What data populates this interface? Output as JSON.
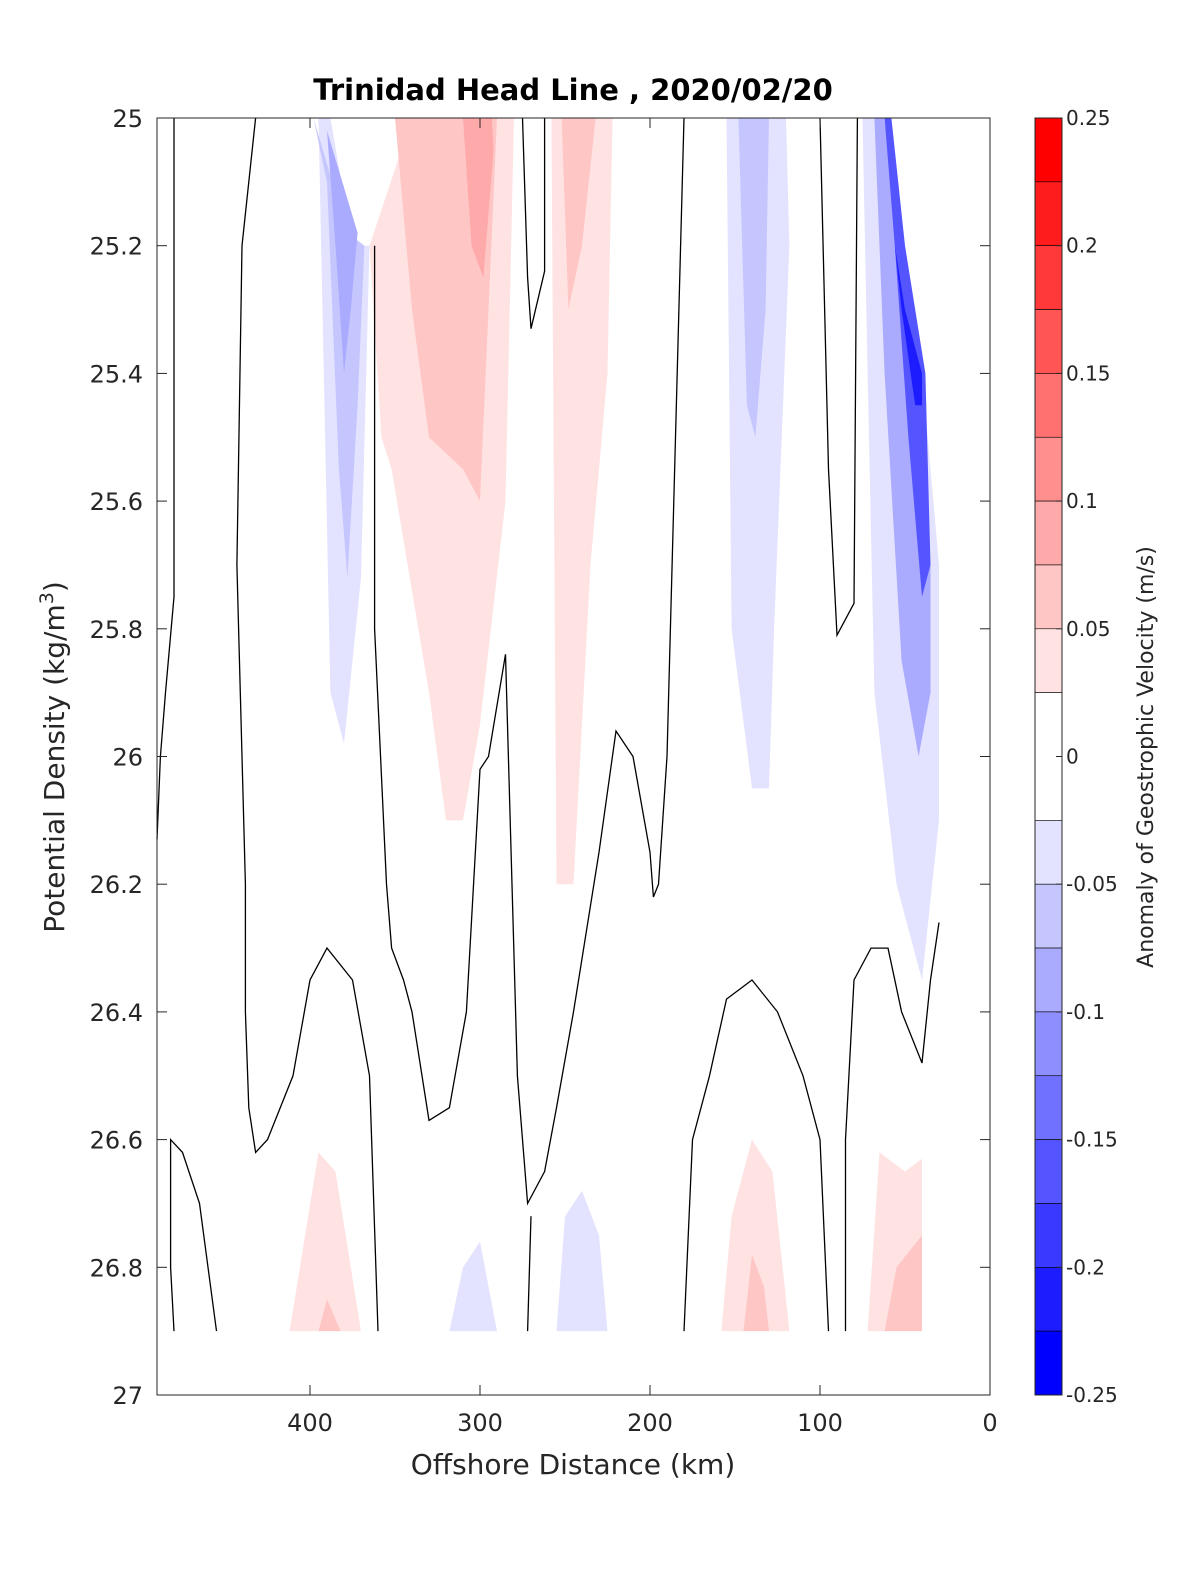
{
  "chart_data": {
    "type": "contour",
    "title": "Trinidad Head Line , 2020/02/20",
    "xlabel": "Offshore Distance (km)",
    "ylabel_main": "Potential Density (kg/m",
    "ylabel_sup": "3",
    "ylabel_tail": ")",
    "colorbar_label": "Anomaly of Geostrophic Velocity (m/s)",
    "xlim": [
      490,
      0
    ],
    "ylim": [
      25,
      27
    ],
    "x_reversed": true,
    "y_reversed": true,
    "x_ticks": [
      400,
      300,
      200,
      100,
      0
    ],
    "x_tick_labels": [
      "400",
      "300",
      "200",
      "100",
      "0"
    ],
    "y_ticks": [
      25,
      25.2,
      25.4,
      25.6,
      25.8,
      26,
      26.2,
      26.4,
      26.6,
      26.8,
      27
    ],
    "y_tick_labels": [
      "25",
      "25.2",
      "25.4",
      "25.6",
      "25.8",
      "26",
      "26.2",
      "26.4",
      "26.6",
      "26.8",
      "27"
    ],
    "colorbar": {
      "min": -0.25,
      "max": 0.25,
      "tick_values": [
        0.25,
        0.2,
        0.15,
        0.1,
        0.05,
        0,
        -0.05,
        -0.1,
        -0.15,
        -0.2,
        -0.25
      ],
      "tick_labels": [
        "0.25",
        "0.2",
        "0.15",
        "0.1",
        "0.05",
        "0",
        "-0.05",
        "-0.1",
        "-0.15",
        "-0.2",
        "-0.25"
      ],
      "levels": [
        {
          "lo": 0.225,
          "hi": 0.25,
          "color": "#ff0000"
        },
        {
          "lo": 0.2,
          "hi": 0.225,
          "color": "#ff1c1c"
        },
        {
          "lo": 0.175,
          "hi": 0.2,
          "color": "#ff3939"
        },
        {
          "lo": 0.15,
          "hi": 0.175,
          "color": "#ff5555"
        },
        {
          "lo": 0.125,
          "hi": 0.15,
          "color": "#ff7171"
        },
        {
          "lo": 0.1,
          "hi": 0.125,
          "color": "#ff8e8e"
        },
        {
          "lo": 0.075,
          "hi": 0.1,
          "color": "#ffaaaa"
        },
        {
          "lo": 0.05,
          "hi": 0.075,
          "color": "#ffc6c6"
        },
        {
          "lo": 0.025,
          "hi": 0.05,
          "color": "#ffe3e3"
        },
        {
          "lo": -0.025,
          "hi": 0.025,
          "color": "#ffffff"
        },
        {
          "lo": -0.05,
          "hi": -0.025,
          "color": "#e3e3ff"
        },
        {
          "lo": -0.075,
          "hi": -0.05,
          "color": "#c6c6ff"
        },
        {
          "lo": -0.1,
          "hi": -0.075,
          "color": "#aaaaff"
        },
        {
          "lo": -0.125,
          "hi": -0.1,
          "color": "#8e8eff"
        },
        {
          "lo": -0.15,
          "hi": -0.125,
          "color": "#7171ff"
        },
        {
          "lo": -0.175,
          "hi": -0.15,
          "color": "#5555ff"
        },
        {
          "lo": -0.2,
          "hi": -0.175,
          "color": "#3939ff"
        },
        {
          "lo": -0.225,
          "hi": -0.2,
          "color": "#1c1cff"
        },
        {
          "lo": -0.25,
          "hi": -0.225,
          "color": "#0000ff"
        }
      ]
    },
    "filled_regions": [
      {
        "name": "blue-core-390",
        "color": "#e3e3ff",
        "points": [
          [
            413,
            25
          ],
          [
            395,
            25
          ],
          [
            388,
            25.9
          ],
          [
            380,
            25.98
          ],
          [
            370,
            25.72
          ],
          [
            365,
            25.2
          ],
          [
            375,
            25.2
          ],
          [
            388,
            25
          ]
        ]
      },
      {
        "name": "blue-core-390-mid",
        "color": "#c6c6ff",
        "points": [
          [
            398,
            25
          ],
          [
            390,
            25.1
          ],
          [
            383,
            25.55
          ],
          [
            378,
            25.72
          ],
          [
            372,
            25.45
          ],
          [
            368,
            25.2
          ],
          [
            378,
            25.18
          ]
        ]
      },
      {
        "name": "blue-core-390-inner",
        "color": "#aaaaff",
        "points": [
          [
            390,
            25.02
          ],
          [
            385,
            25.2
          ],
          [
            380,
            25.4
          ],
          [
            376,
            25.3
          ],
          [
            372,
            25.18
          ]
        ]
      },
      {
        "name": "red-core-310",
        "color": "#ffe3e3",
        "points": [
          [
            365,
            25.2
          ],
          [
            358,
            25.5
          ],
          [
            352,
            25.55
          ],
          [
            330,
            25.9
          ],
          [
            320,
            26.1
          ],
          [
            310,
            26.1
          ],
          [
            300,
            25.95
          ],
          [
            285,
            25.6
          ],
          [
            280,
            25.0
          ],
          [
            340,
            25.0
          ]
        ]
      },
      {
        "name": "red-core-310-mid",
        "color": "#ffc6c6",
        "points": [
          [
            350,
            25.0
          ],
          [
            340,
            25.3
          ],
          [
            330,
            25.5
          ],
          [
            310,
            25.55
          ],
          [
            300,
            25.6
          ],
          [
            295,
            25.3
          ],
          [
            290,
            25.0
          ]
        ]
      },
      {
        "name": "red-core-300-inner",
        "color": "#ffaaaa",
        "points": [
          [
            310,
            25.0
          ],
          [
            305,
            25.2
          ],
          [
            298,
            25.25
          ],
          [
            292,
            25.05
          ],
          [
            293,
            25.0
          ]
        ]
      },
      {
        "name": "red-core-240",
        "color": "#ffe3e3",
        "points": [
          [
            258,
            25
          ],
          [
            255,
            26.2
          ],
          [
            245,
            26.2
          ],
          [
            235,
            25.7
          ],
          [
            225,
            25.4
          ],
          [
            222,
            25.0
          ]
        ]
      },
      {
        "name": "red-core-240-mid",
        "color": "#ffc6c6",
        "points": [
          [
            252,
            25
          ],
          [
            248,
            25.3
          ],
          [
            240,
            25.2
          ],
          [
            232,
            25.0
          ]
        ]
      },
      {
        "name": "blue-core-140",
        "color": "#e3e3ff",
        "points": [
          [
            155,
            25
          ],
          [
            152,
            25.8
          ],
          [
            140,
            26.05
          ],
          [
            130,
            26.05
          ],
          [
            127,
            25.8
          ],
          [
            118,
            25.2
          ],
          [
            120,
            25.0
          ]
        ]
      },
      {
        "name": "blue-core-140-mid",
        "color": "#c6c6ff",
        "points": [
          [
            148,
            25
          ],
          [
            143,
            25.45
          ],
          [
            138,
            25.5
          ],
          [
            132,
            25.3
          ],
          [
            130,
            25.0
          ]
        ]
      },
      {
        "name": "blue-nearshore",
        "color": "#e3e3ff",
        "points": [
          [
            75,
            25
          ],
          [
            72,
            25.4
          ],
          [
            68,
            25.9
          ],
          [
            55,
            26.2
          ],
          [
            40,
            26.35
          ],
          [
            30,
            26.1
          ],
          [
            30,
            25.7
          ],
          [
            40,
            25.4
          ],
          [
            55,
            25.2
          ],
          [
            65,
            25.0
          ]
        ]
      },
      {
        "name": "blue-nearshore-mid",
        "color": "#aaaaff",
        "points": [
          [
            68,
            25
          ],
          [
            62,
            25.4
          ],
          [
            52,
            25.85
          ],
          [
            42,
            26.0
          ],
          [
            35,
            25.9
          ],
          [
            35,
            25.7
          ],
          [
            42,
            25.4
          ],
          [
            55,
            25.2
          ],
          [
            62,
            25.0
          ]
        ]
      },
      {
        "name": "blue-nearshore-inner",
        "color": "#5555ff",
        "points": [
          [
            62,
            25
          ],
          [
            56,
            25.2
          ],
          [
            48,
            25.5
          ],
          [
            40,
            25.75
          ],
          [
            35,
            25.7
          ],
          [
            38,
            25.4
          ],
          [
            50,
            25.2
          ],
          [
            58,
            25.0
          ]
        ]
      },
      {
        "name": "blue-nearshore-core",
        "color": "#1c1cff",
        "points": [
          [
            56,
            25.2
          ],
          [
            52,
            25.3
          ],
          [
            44,
            25.45
          ],
          [
            40,
            25.45
          ],
          [
            40,
            25.4
          ],
          [
            50,
            25.3
          ]
        ]
      },
      {
        "name": "red-bottom-390",
        "color": "#ffe3e3",
        "points": [
          [
            412,
            26.9
          ],
          [
            395,
            26.62
          ],
          [
            385,
            26.65
          ],
          [
            370,
            26.9
          ]
        ]
      },
      {
        "name": "red-bottom-390-mid",
        "color": "#ffc6c6",
        "points": [
          [
            395,
            26.9
          ],
          [
            390,
            26.85
          ],
          [
            382,
            26.9
          ]
        ]
      },
      {
        "name": "blue-bottom-300",
        "color": "#e3e3ff",
        "points": [
          [
            318,
            26.9
          ],
          [
            310,
            26.8
          ],
          [
            300,
            26.76
          ],
          [
            290,
            26.9
          ]
        ]
      },
      {
        "name": "blue-bottom-240",
        "color": "#e3e3ff",
        "points": [
          [
            255,
            26.9
          ],
          [
            250,
            26.72
          ],
          [
            240,
            26.68
          ],
          [
            230,
            26.75
          ],
          [
            225,
            26.9
          ]
        ]
      },
      {
        "name": "red-bottom-140",
        "color": "#ffe3e3",
        "points": [
          [
            158,
            26.9
          ],
          [
            152,
            26.72
          ],
          [
            140,
            26.6
          ],
          [
            128,
            26.65
          ],
          [
            118,
            26.9
          ]
        ]
      },
      {
        "name": "red-bottom-140-mid",
        "color": "#ffc6c6",
        "points": [
          [
            145,
            26.9
          ],
          [
            140,
            26.78
          ],
          [
            133,
            26.83
          ],
          [
            130,
            26.9
          ]
        ]
      },
      {
        "name": "red-bottom-50",
        "color": "#ffe3e3",
        "points": [
          [
            72,
            26.9
          ],
          [
            65,
            26.62
          ],
          [
            50,
            26.65
          ],
          [
            40,
            26.63
          ],
          [
            40,
            26.9
          ]
        ]
      },
      {
        "name": "red-bottom-50-mid",
        "color": "#ffc6c6",
        "points": [
          [
            62,
            26.9
          ],
          [
            55,
            26.8
          ],
          [
            40,
            26.75
          ],
          [
            40,
            26.9
          ]
        ]
      }
    ],
    "zero_contours": [
      {
        "name": "contour-470",
        "points": [
          [
            490,
            26.13
          ],
          [
            488,
            26.0
          ],
          [
            485,
            25.9
          ],
          [
            480,
            25.75
          ],
          [
            480,
            25.0
          ]
        ]
      },
      {
        "name": "contour-438",
        "points": [
          [
            432,
            25.0
          ],
          [
            440,
            25.2
          ],
          [
            443,
            25.7
          ],
          [
            438,
            26.2
          ],
          [
            438,
            26.4
          ],
          [
            436,
            26.55
          ],
          [
            432,
            26.62
          ],
          [
            425,
            26.6
          ],
          [
            410,
            26.5
          ],
          [
            400,
            26.35
          ],
          [
            390,
            26.3
          ],
          [
            375,
            26.35
          ],
          [
            365,
            26.5
          ],
          [
            360,
            26.9
          ]
        ]
      },
      {
        "name": "contour-362",
        "points": [
          [
            362,
            25.2
          ],
          [
            362,
            25.8
          ],
          [
            355,
            26.2
          ],
          [
            352,
            26.3
          ],
          [
            345,
            26.35
          ],
          [
            340,
            26.4
          ],
          [
            330,
            26.57
          ],
          [
            318,
            26.55
          ],
          [
            308,
            26.4
          ],
          [
            300,
            26.02
          ],
          [
            295,
            26.0
          ],
          [
            285,
            25.84
          ],
          [
            278,
            26.5
          ],
          [
            272,
            26.7
          ],
          [
            262,
            26.65
          ],
          [
            255,
            26.55
          ],
          [
            245,
            26.4
          ],
          [
            230,
            26.15
          ],
          [
            220,
            25.96
          ],
          [
            210,
            26.0
          ],
          [
            200,
            26.15
          ],
          [
            198,
            26.22
          ],
          [
            195,
            26.2
          ],
          [
            190,
            26.0
          ],
          [
            180,
            25.0
          ]
        ]
      },
      {
        "name": "contour-270",
        "points": [
          [
            275,
            25.0
          ],
          [
            272,
            25.25
          ],
          [
            270,
            25.33
          ],
          [
            262,
            25.24
          ],
          [
            262,
            25.0
          ]
        ]
      },
      {
        "name": "contour-480-bottom",
        "points": [
          [
            480,
            26.9
          ],
          [
            482,
            26.8
          ],
          [
            482,
            26.6
          ],
          [
            475,
            26.62
          ],
          [
            465,
            26.7
          ],
          [
            460,
            26.8
          ],
          [
            455,
            26.9
          ]
        ]
      },
      {
        "name": "contour-270-bottom",
        "points": [
          [
            272,
            26.9
          ],
          [
            270,
            26.72
          ]
        ]
      },
      {
        "name": "contour-140",
        "points": [
          [
            180,
            26.9
          ],
          [
            175,
            26.6
          ],
          [
            165,
            26.5
          ],
          [
            155,
            26.38
          ],
          [
            140,
            26.35
          ],
          [
            125,
            26.4
          ],
          [
            110,
            26.5
          ],
          [
            100,
            26.6
          ],
          [
            95,
            26.9
          ]
        ]
      },
      {
        "name": "contour-90",
        "points": [
          [
            100,
            25.0
          ],
          [
            95,
            25.55
          ],
          [
            90,
            25.81
          ],
          [
            80,
            25.76
          ],
          [
            78,
            25.0
          ]
        ]
      },
      {
        "name": "contour-60",
        "points": [
          [
            85,
            26.9
          ],
          [
            85,
            26.6
          ],
          [
            80,
            26.35
          ],
          [
            70,
            26.3
          ],
          [
            60,
            26.3
          ],
          [
            52,
            26.4
          ],
          [
            40,
            26.48
          ],
          [
            35,
            26.35
          ],
          [
            30,
            26.26
          ]
        ]
      }
    ]
  }
}
